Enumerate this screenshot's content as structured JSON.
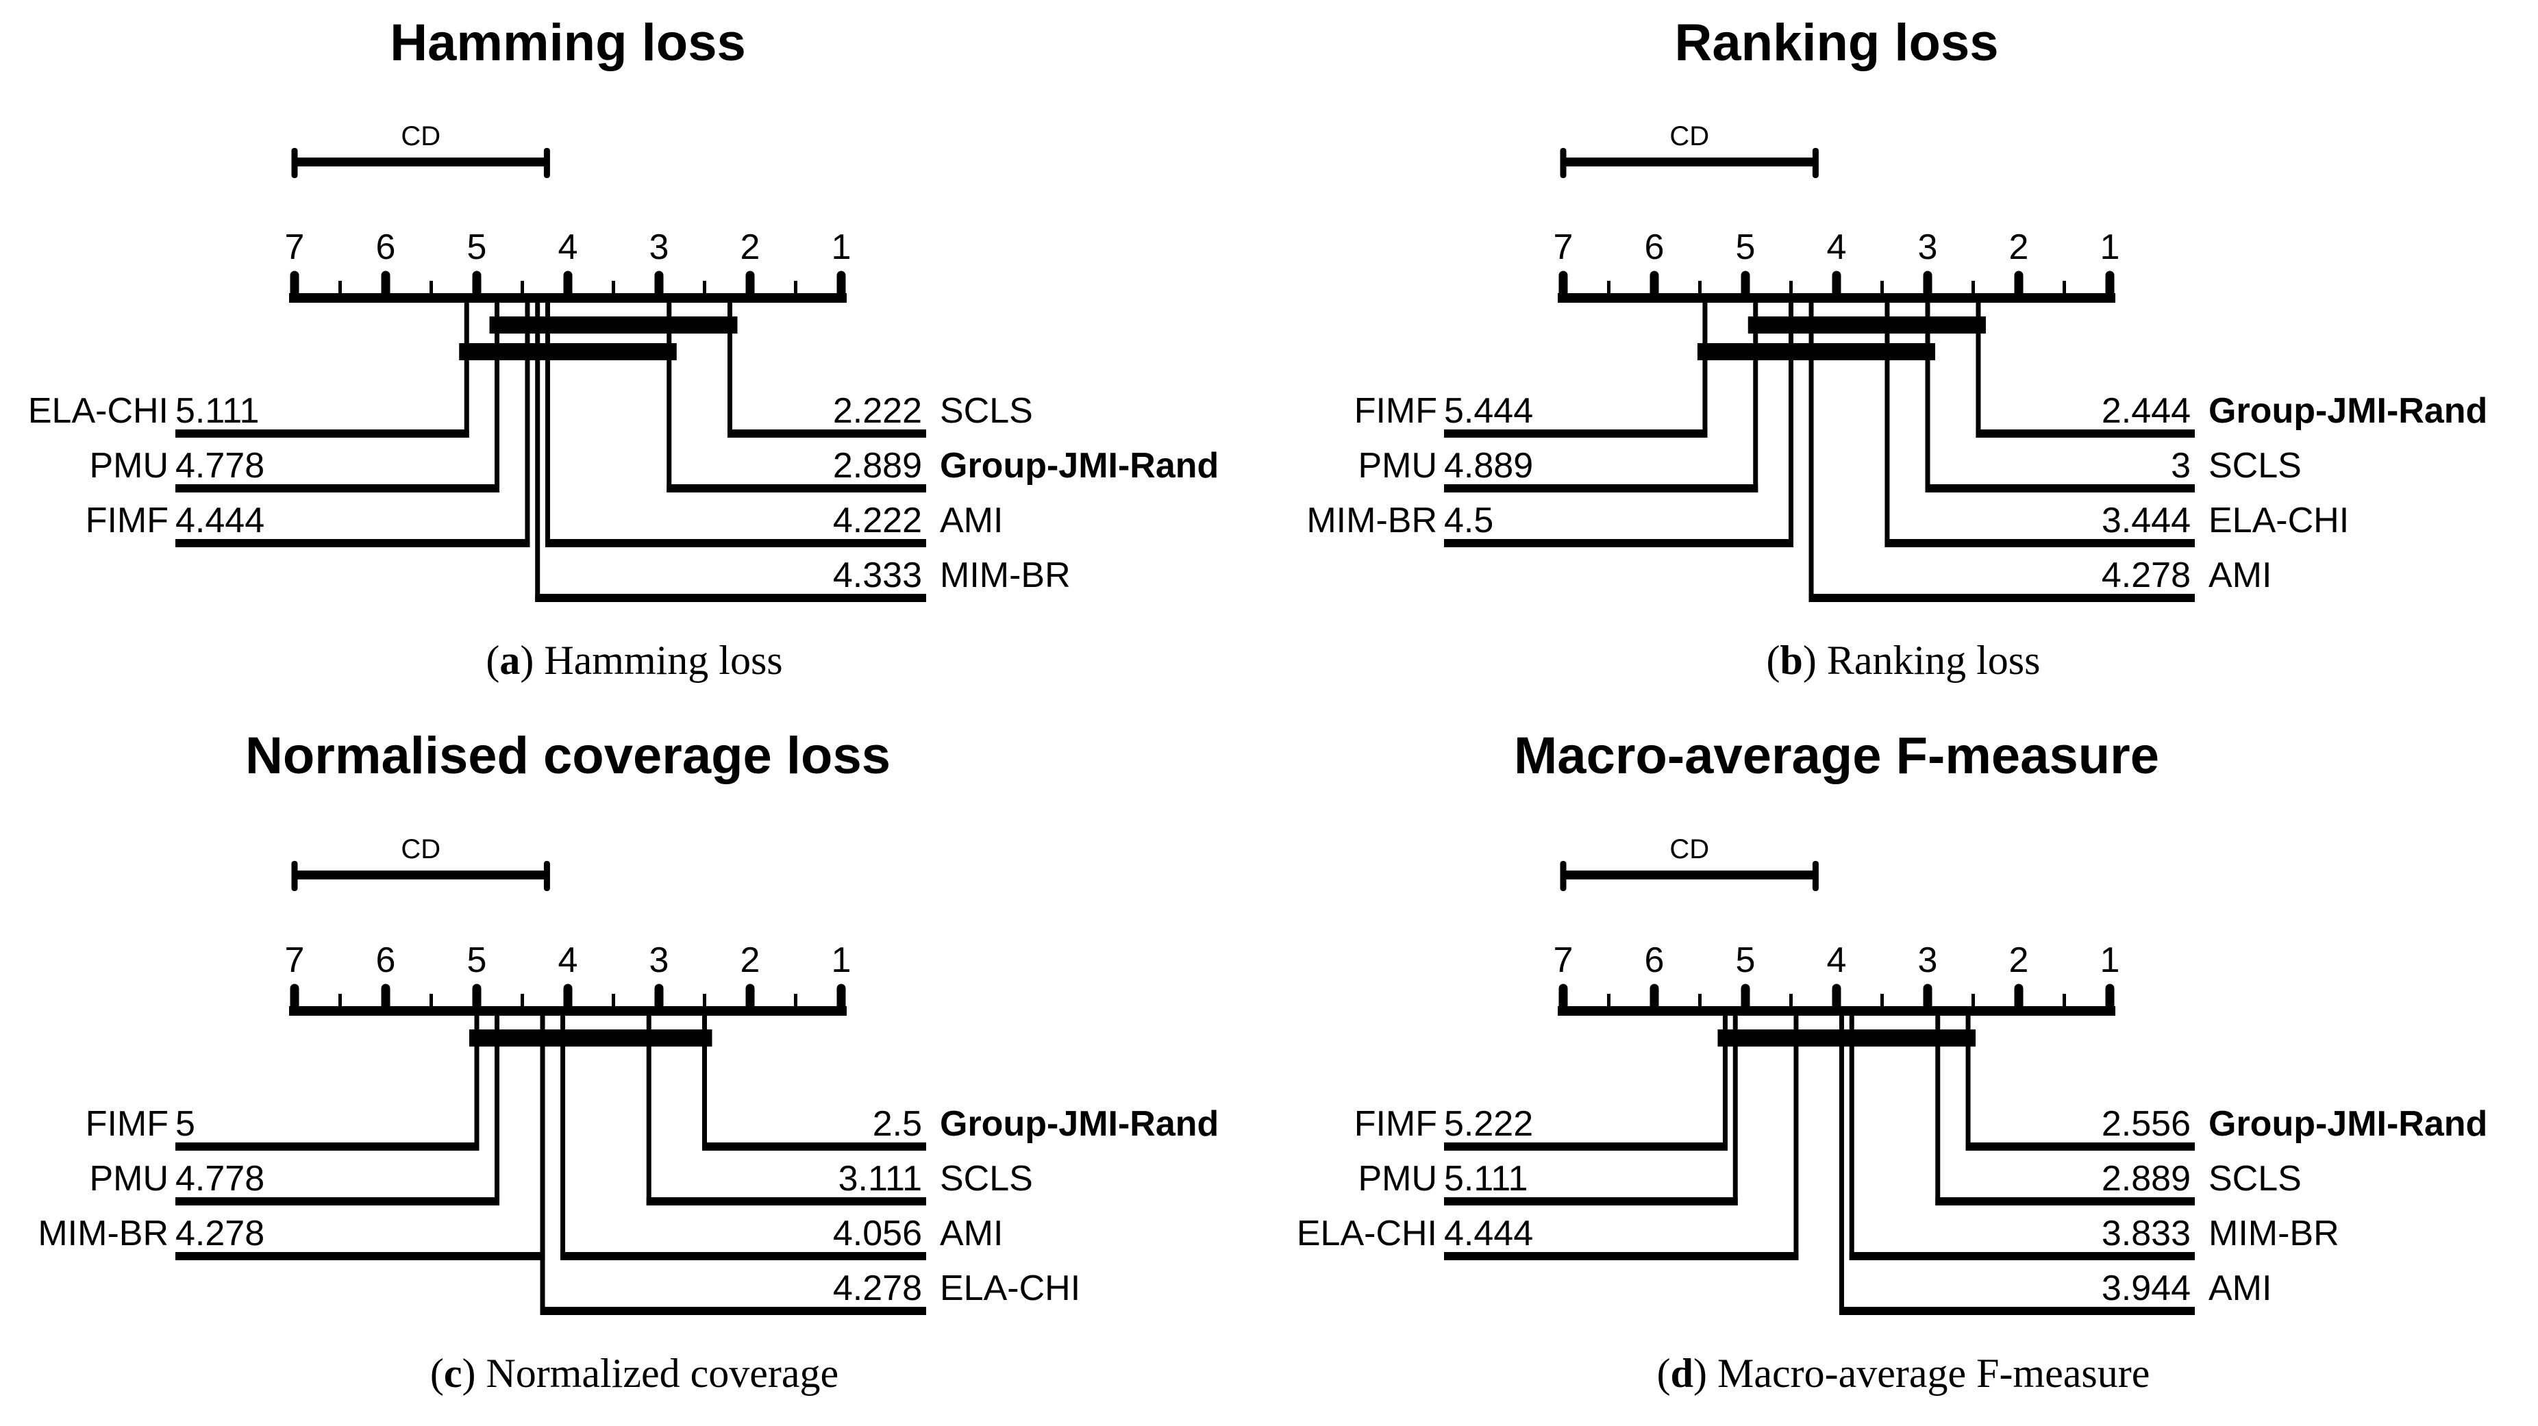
{
  "figure": {
    "background_color": "#ffffff",
    "ink_color": "#000000",
    "description": "Four critical-difference (CD) diagrams comparing seven feature-selection methods"
  },
  "chart_data": [
    {
      "type": "cd-diagram",
      "title": "Hamming loss",
      "caption_letter": "a",
      "caption_text": "Hamming loss",
      "cd_label": "CD",
      "cd_width_ranks": 2.77,
      "axis": {
        "min": 1,
        "max": 7,
        "major_ticks": [
          7,
          6,
          5,
          4,
          3,
          2,
          1
        ],
        "minor_tick_step": 0.5
      },
      "left_methods": [
        {
          "name": "ELA-CHI",
          "rank": 5.111,
          "value_label": "5.111",
          "bold": false
        },
        {
          "name": "PMU",
          "rank": 4.778,
          "value_label": "4.778",
          "bold": false
        },
        {
          "name": "FIMF",
          "rank": 4.444,
          "value_label": "4.444",
          "bold": false
        }
      ],
      "right_methods": [
        {
          "name": "SCLS",
          "rank": 2.222,
          "value_label": "2.222",
          "bold": false
        },
        {
          "name": "Group-JMI-Rand",
          "rank": 2.889,
          "value_label": "2.889",
          "bold": true
        },
        {
          "name": "AMI",
          "rank": 4.222,
          "value_label": "4.222",
          "bold": false
        },
        {
          "name": "MIM-BR",
          "rank": 4.333,
          "value_label": "4.333",
          "bold": false
        }
      ],
      "clique_bars": [
        {
          "from_rank": 4.778,
          "to_rank": 2.222
        },
        {
          "from_rank": 5.111,
          "to_rank": 2.889
        }
      ]
    },
    {
      "type": "cd-diagram",
      "title": "Ranking loss",
      "caption_letter": "b",
      "caption_text": "Ranking loss",
      "cd_label": "CD",
      "cd_width_ranks": 2.77,
      "axis": {
        "min": 1,
        "max": 7,
        "major_ticks": [
          7,
          6,
          5,
          4,
          3,
          2,
          1
        ],
        "minor_tick_step": 0.5
      },
      "left_methods": [
        {
          "name": "FIMF",
          "rank": 5.444,
          "value_label": "5.444",
          "bold": false
        },
        {
          "name": "PMU",
          "rank": 4.889,
          "value_label": "4.889",
          "bold": false
        },
        {
          "name": "MIM-BR",
          "rank": 4.5,
          "value_label": "4.5",
          "bold": false
        }
      ],
      "right_methods": [
        {
          "name": "Group-JMI-Rand",
          "rank": 2.444,
          "value_label": "2.444",
          "bold": true
        },
        {
          "name": "SCLS",
          "rank": 3,
          "value_label": "3",
          "bold": false
        },
        {
          "name": "ELA-CHI",
          "rank": 3.444,
          "value_label": "3.444",
          "bold": false
        },
        {
          "name": "AMI",
          "rank": 4.278,
          "value_label": "4.278",
          "bold": false
        }
      ],
      "clique_bars": [
        {
          "from_rank": 4.889,
          "to_rank": 2.444
        },
        {
          "from_rank": 5.444,
          "to_rank": 3
        }
      ]
    },
    {
      "type": "cd-diagram",
      "title": "Normalised coverage loss",
      "caption_letter": "c",
      "caption_text": "Normalized coverage",
      "cd_label": "CD",
      "cd_width_ranks": 2.77,
      "axis": {
        "min": 1,
        "max": 7,
        "major_ticks": [
          7,
          6,
          5,
          4,
          3,
          2,
          1
        ],
        "minor_tick_step": 0.5
      },
      "left_methods": [
        {
          "name": "FIMF",
          "rank": 5,
          "value_label": "5",
          "bold": false
        },
        {
          "name": "PMU",
          "rank": 4.778,
          "value_label": "4.778",
          "bold": false
        },
        {
          "name": "MIM-BR",
          "rank": 4.278,
          "value_label": "4.278",
          "bold": false
        }
      ],
      "right_methods": [
        {
          "name": "Group-JMI-Rand",
          "rank": 2.5,
          "value_label": "2.5",
          "bold": true
        },
        {
          "name": "SCLS",
          "rank": 3.111,
          "value_label": "3.111",
          "bold": false
        },
        {
          "name": "AMI",
          "rank": 4.056,
          "value_label": "4.056",
          "bold": false
        },
        {
          "name": "ELA-CHI",
          "rank": 4.278,
          "value_label": "4.278",
          "bold": false
        }
      ],
      "clique_bars": [
        {
          "from_rank": 5,
          "to_rank": 2.5
        }
      ]
    },
    {
      "type": "cd-diagram",
      "title": "Macro-average F-measure",
      "caption_letter": "d",
      "caption_text": "Macro-average F-measure",
      "cd_label": "CD",
      "cd_width_ranks": 2.77,
      "axis": {
        "min": 1,
        "max": 7,
        "major_ticks": [
          7,
          6,
          5,
          4,
          3,
          2,
          1
        ],
        "minor_tick_step": 0.5
      },
      "left_methods": [
        {
          "name": "FIMF",
          "rank": 5.222,
          "value_label": "5.222",
          "bold": false
        },
        {
          "name": "PMU",
          "rank": 5.111,
          "value_label": "5.111",
          "bold": false
        },
        {
          "name": "ELA-CHI",
          "rank": 4.444,
          "value_label": "4.444",
          "bold": false
        }
      ],
      "right_methods": [
        {
          "name": "Group-JMI-Rand",
          "rank": 2.556,
          "value_label": "2.556",
          "bold": true
        },
        {
          "name": "SCLS",
          "rank": 2.889,
          "value_label": "2.889",
          "bold": false
        },
        {
          "name": "MIM-BR",
          "rank": 3.833,
          "value_label": "3.833",
          "bold": false
        },
        {
          "name": "AMI",
          "rank": 3.944,
          "value_label": "3.944",
          "bold": false
        }
      ],
      "clique_bars": [
        {
          "from_rank": 5.222,
          "to_rank": 2.556
        }
      ]
    }
  ]
}
